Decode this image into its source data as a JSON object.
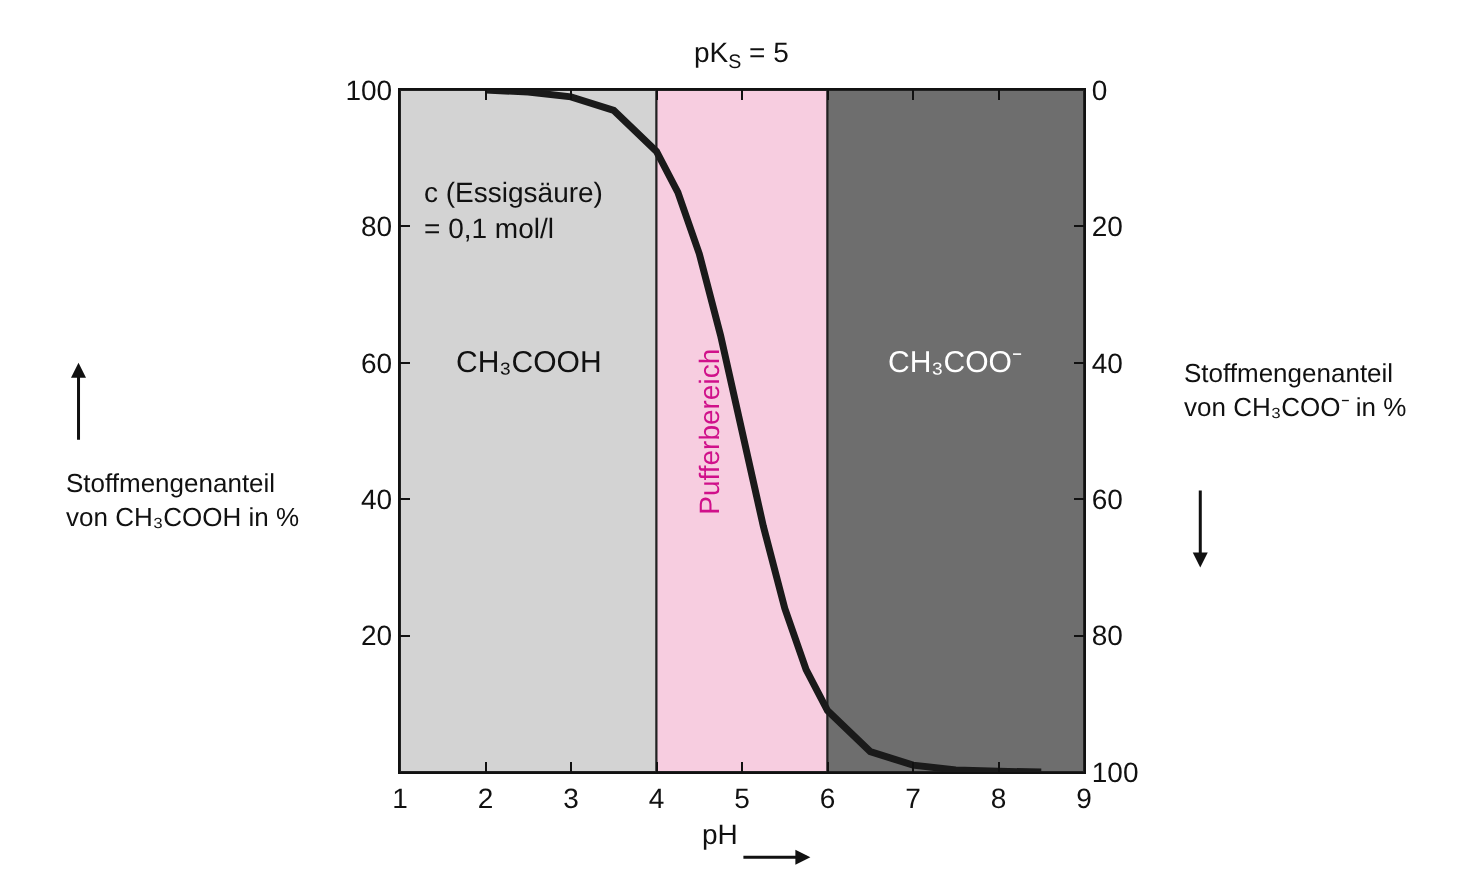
{
  "chart_data": {
    "type": "line",
    "xlabel": "pH",
    "ylabel": "Stoffmengenanteil von CH₃COOH in %",
    "y2label": "Stoffmengenanteil von CH₃COO⁻ in %",
    "x": [
      2,
      2.5,
      3,
      3.5,
      4,
      4.25,
      4.5,
      4.75,
      5,
      5.25,
      5.5,
      5.75,
      6,
      6.5,
      7,
      7.5,
      8,
      8.5
    ],
    "series": [
      {
        "color": "#1a1a1a",
        "values": [
          100,
          99.7,
          99,
          97,
          91,
          85,
          76,
          64,
          50,
          36,
          24,
          15,
          9,
          3,
          1,
          0.3,
          0.1,
          0
        ]
      }
    ],
    "xlim": [
      1,
      9
    ],
    "xticks": [
      1,
      2,
      3,
      4,
      5,
      6,
      7,
      8,
      9
    ],
    "ylim": [
      0,
      100
    ],
    "yticks": [
      20,
      40,
      60,
      80,
      100
    ],
    "y2lim": [
      100,
      0
    ],
    "y2ticks": [
      0,
      20,
      40,
      60,
      80,
      100
    ],
    "bands": [
      {
        "axis": "x",
        "from": 1,
        "to": 4,
        "label": "CH₃COOH",
        "color": "#d3d3d3"
      },
      {
        "axis": "x",
        "from": 4,
        "to": 6,
        "label": "Pufferbereich",
        "color": "#f7cde0"
      },
      {
        "axis": "x",
        "from": 6,
        "to": 9,
        "label": "CH₃COO⁻",
        "color": "#6e6e6e"
      }
    ],
    "annotations": [
      {
        "text": "pK$_{S}$ = 5",
        "x": 5,
        "y": 100
      },
      "c (Essigsäure)\n= 0,1 mol/l"
    ],
    "grid": false,
    "marker": "none",
    "line_style": "solid"
  }
}
